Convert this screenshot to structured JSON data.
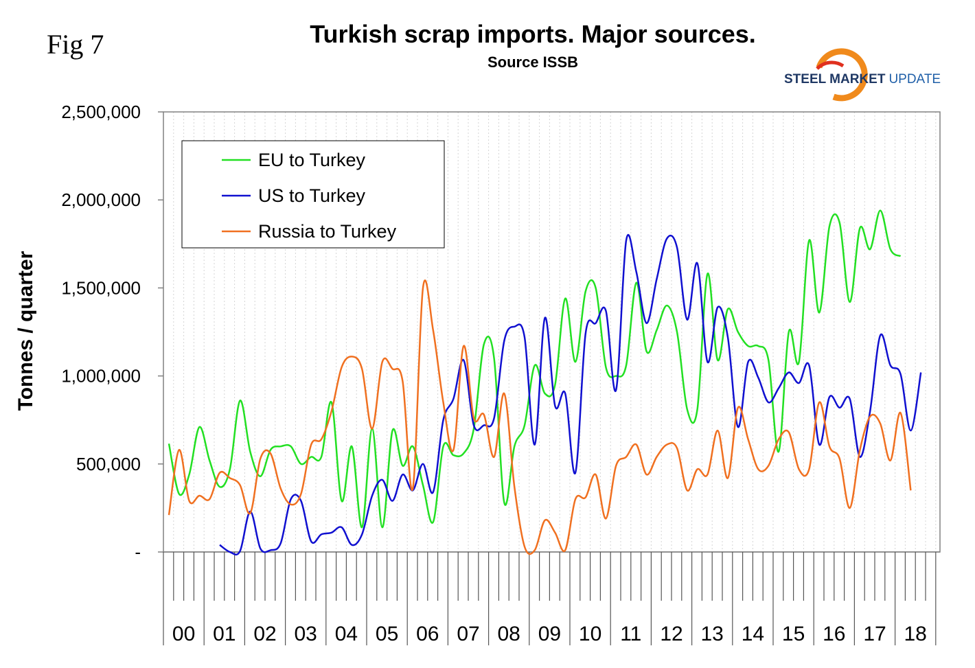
{
  "figure_label": "Fig 7",
  "logo": {
    "brand_bold": "STEEL MARKET",
    "brand_light": "UPDATE"
  },
  "chart_data": {
    "type": "line",
    "title": "Turkish scrap imports. Major sources.",
    "subtitle": "Source ISSB",
    "ylabel": "Tonnes / quarter",
    "xlabel": "",
    "ylim": [
      0,
      2500000
    ],
    "yticks": [
      0,
      500000,
      1000000,
      1500000,
      2000000,
      2500000
    ],
    "ytick_labels": [
      "-",
      "500,000",
      "1,000,000",
      "1,500,000",
      "2,000,000",
      "2,500,000"
    ],
    "x_unit": "quarter",
    "x_start": "2000 Q1",
    "year_labels": [
      "00",
      "01",
      "02",
      "03",
      "04",
      "05",
      "06",
      "07",
      "08",
      "09",
      "10",
      "11",
      "12",
      "13",
      "14",
      "15",
      "16",
      "17",
      "18"
    ],
    "grid": {
      "vertical": true,
      "horizontal": false
    },
    "legend_position": "top-left",
    "series": [
      {
        "name": "EU to Turkey",
        "color": "#22e022",
        "values": [
          615000,
          330000,
          440000,
          710000,
          520000,
          370000,
          470000,
          860000,
          570000,
          430000,
          580000,
          600000,
          600000,
          500000,
          540000,
          540000,
          850000,
          290000,
          600000,
          140000,
          700000,
          140000,
          690000,
          490000,
          600000,
          380000,
          170000,
          600000,
          550000,
          560000,
          700000,
          1180000,
          1100000,
          280000,
          600000,
          720000,
          1060000,
          900000,
          950000,
          1440000,
          1080000,
          1480000,
          1500000,
          1050000,
          1000000,
          1060000,
          1530000,
          1140000,
          1260000,
          1400000,
          1250000,
          810000,
          810000,
          1580000,
          1090000,
          1380000,
          1250000,
          1170000,
          1170000,
          1090000,
          570000,
          1250000,
          1080000,
          1770000,
          1360000,
          1850000,
          1870000,
          1420000,
          1840000,
          1720000,
          1940000,
          1720000,
          1680000
        ]
      },
      {
        "name": "US to Turkey",
        "color": "#1010d0",
        "values": [
          null,
          null,
          null,
          null,
          null,
          40000,
          0,
          5000,
          230000,
          20000,
          10000,
          50000,
          300000,
          290000,
          60000,
          100000,
          110000,
          140000,
          40000,
          100000,
          320000,
          410000,
          290000,
          440000,
          350000,
          500000,
          340000,
          750000,
          870000,
          1090000,
          720000,
          720000,
          760000,
          1200000,
          1280000,
          1220000,
          610000,
          1330000,
          830000,
          900000,
          450000,
          1240000,
          1300000,
          1370000,
          920000,
          1770000,
          1590000,
          1300000,
          1550000,
          1780000,
          1730000,
          1320000,
          1640000,
          1080000,
          1390000,
          1220000,
          710000,
          1080000,
          990000,
          850000,
          930000,
          1020000,
          960000,
          1060000,
          610000,
          880000,
          820000,
          870000,
          540000,
          800000,
          1230000,
          1060000,
          1010000,
          690000,
          1020000
        ]
      },
      {
        "name": "Russia to Turkey",
        "color": "#f07020",
        "values": [
          210000,
          580000,
          290000,
          320000,
          300000,
          450000,
          420000,
          380000,
          220000,
          530000,
          560000,
          360000,
          270000,
          330000,
          610000,
          640000,
          800000,
          1050000,
          1110000,
          1040000,
          700000,
          1080000,
          1040000,
          970000,
          360000,
          1500000,
          1260000,
          850000,
          580000,
          1170000,
          760000,
          780000,
          540000,
          900000,
          370000,
          30000,
          10000,
          180000,
          110000,
          10000,
          300000,
          310000,
          440000,
          190000,
          490000,
          540000,
          610000,
          440000,
          540000,
          610000,
          590000,
          350000,
          470000,
          440000,
          690000,
          420000,
          820000,
          640000,
          470000,
          490000,
          640000,
          680000,
          470000,
          470000,
          850000,
          600000,
          530000,
          250000,
          580000,
          770000,
          730000,
          520000,
          790000,
          350000
        ]
      }
    ]
  }
}
